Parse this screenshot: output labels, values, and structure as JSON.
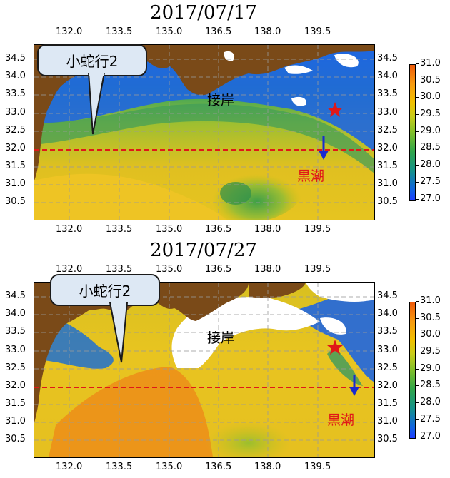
{
  "panels": [
    {
      "date": "2017/07/17",
      "callout": "小蛇行2",
      "coast_label": "接岸",
      "current_label": "黒潮",
      "lon_ticks": [
        "132.0",
        "133.5",
        "135.0",
        "136.5",
        "138.0",
        "139.5"
      ],
      "lat_ticks": [
        "34.5",
        "34.0",
        "33.5",
        "33.0",
        "32.5",
        "32.0",
        "31.5",
        "31.0",
        "30.5"
      ],
      "reference_lat": "32.0"
    },
    {
      "date": "2017/07/27",
      "callout": "小蛇行2",
      "coast_label": "接岸",
      "current_label": "黒潮",
      "lon_ticks": [
        "132.0",
        "133.5",
        "135.0",
        "136.5",
        "138.0",
        "139.5"
      ],
      "lat_ticks": [
        "34.5",
        "34.0",
        "33.5",
        "33.0",
        "32.5",
        "32.0",
        "31.5",
        "31.0",
        "30.5"
      ],
      "reference_lat": "32.0"
    }
  ],
  "colorbar": {
    "ticks": [
      "31.0",
      "30.5",
      "30.0",
      "29.5",
      "29.0",
      "28.5",
      "28.0",
      "27.5",
      "27.0"
    ],
    "range": [
      27.0,
      31.0
    ],
    "colors": [
      "#1e3cff",
      "#14928a",
      "#7fbf2a",
      "#f0c000",
      "#ee5a0a"
    ]
  },
  "colors": {
    "land": "#7a4a18",
    "reference_line": "#e01818",
    "marker": "#e01818",
    "arrow": "#1a2ad0",
    "current_text": "#e01818"
  }
}
